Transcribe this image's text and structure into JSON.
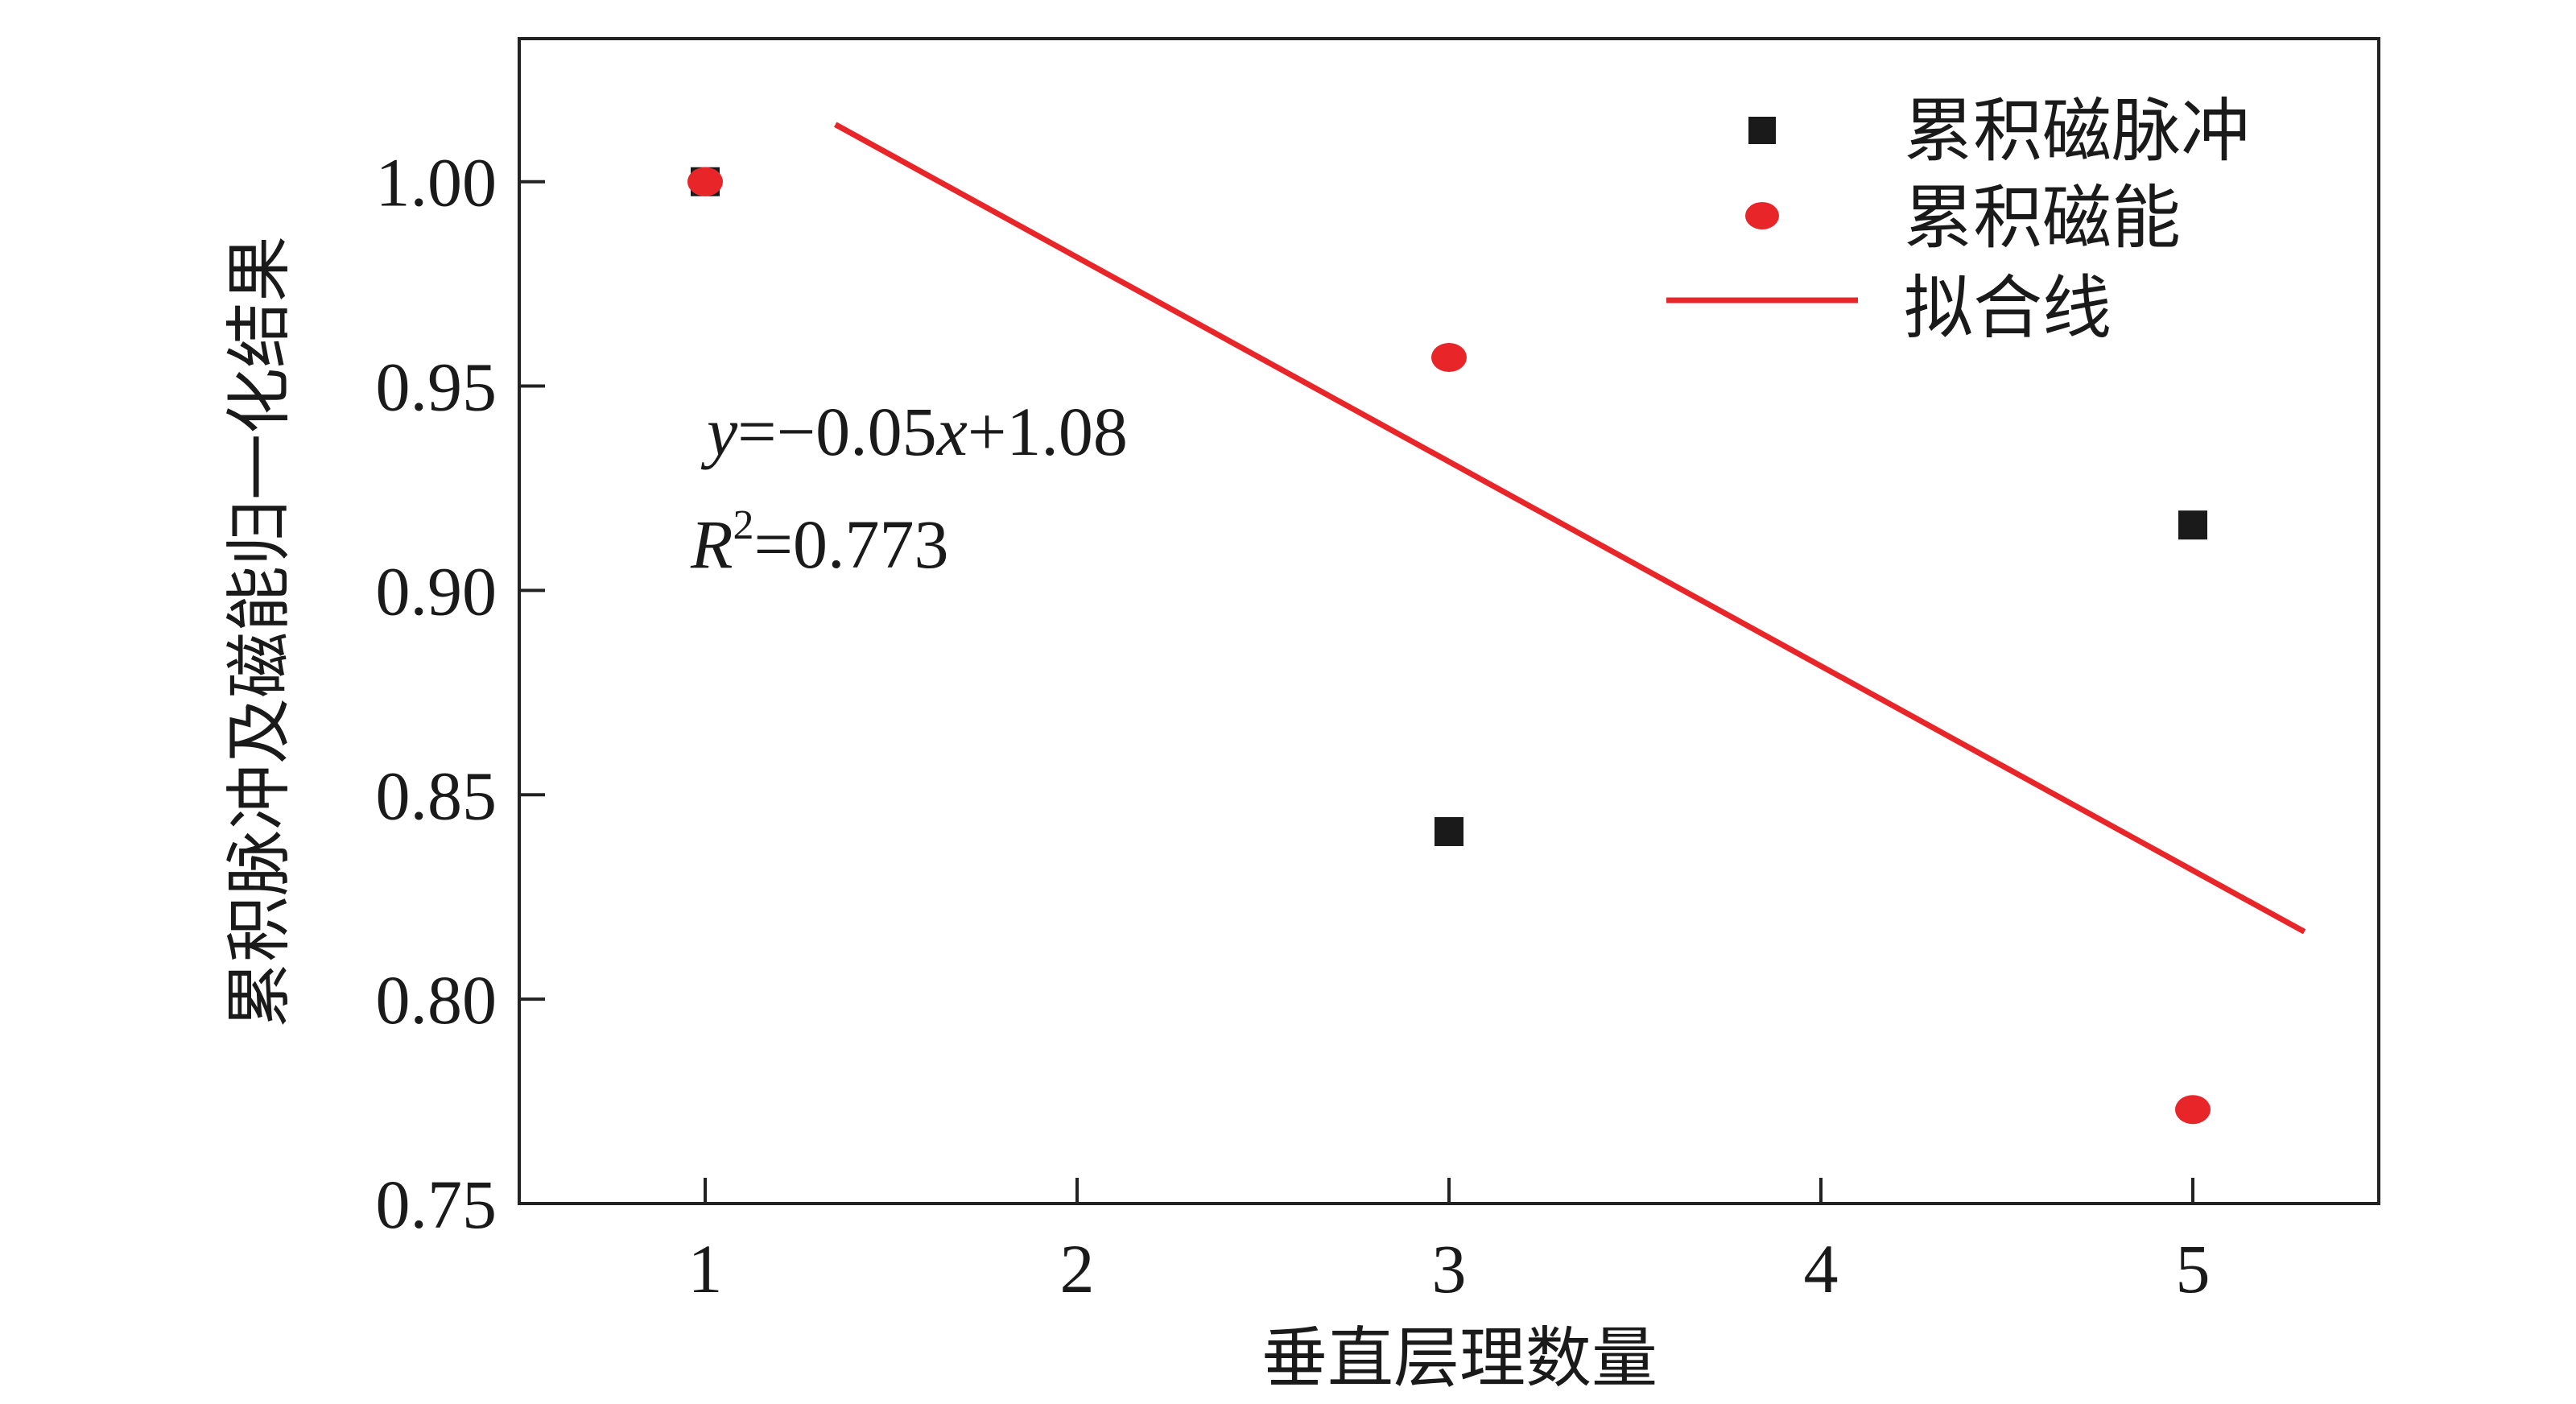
{
  "chart_data": {
    "type": "scatter",
    "xlabel": "垂直层理数量",
    "ylabel": "累积脉冲及磁能归一化结果",
    "xlim": [
      0.5,
      5.5
    ],
    "ylim": [
      0.75,
      1.035
    ],
    "x_ticks": [
      1,
      2,
      3,
      4,
      5
    ],
    "x_tick_labels": [
      "1",
      "2",
      "3",
      "4",
      "5"
    ],
    "y_ticks": [
      0.75,
      0.8,
      0.85,
      0.9,
      0.95,
      1.0
    ],
    "y_tick_labels": [
      "0.75",
      "0.80",
      "0.85",
      "0.90",
      "0.95",
      "1.00"
    ],
    "series": [
      {
        "name": "累积磁脉冲",
        "marker": "square",
        "color": "#1a1a1a",
        "points": [
          {
            "x": 1,
            "y": 1.0
          },
          {
            "x": 3,
            "y": 0.841
          },
          {
            "x": 5,
            "y": 0.916
          }
        ]
      },
      {
        "name": "累积磁能",
        "marker": "circle",
        "color": "#e8262a",
        "points": [
          {
            "x": 1,
            "y": 1.0
          },
          {
            "x": 3,
            "y": 0.957
          },
          {
            "x": 5,
            "y": 0.773
          }
        ]
      }
    ],
    "fit_line": {
      "name": "拟合线",
      "color": "#e8262a",
      "slope": -0.05,
      "intercept": 1.0815,
      "x_range": [
        1.35,
        5.3
      ]
    },
    "annotations": {
      "equation": {
        "prefix": "y",
        "body": "=−0.05",
        "var": "x",
        "suffix": "+1.08"
      },
      "r2": {
        "prefix": "R",
        "sup": "2",
        "suffix": "=0.773"
      }
    },
    "legend_position": "top-right",
    "grid": false
  }
}
